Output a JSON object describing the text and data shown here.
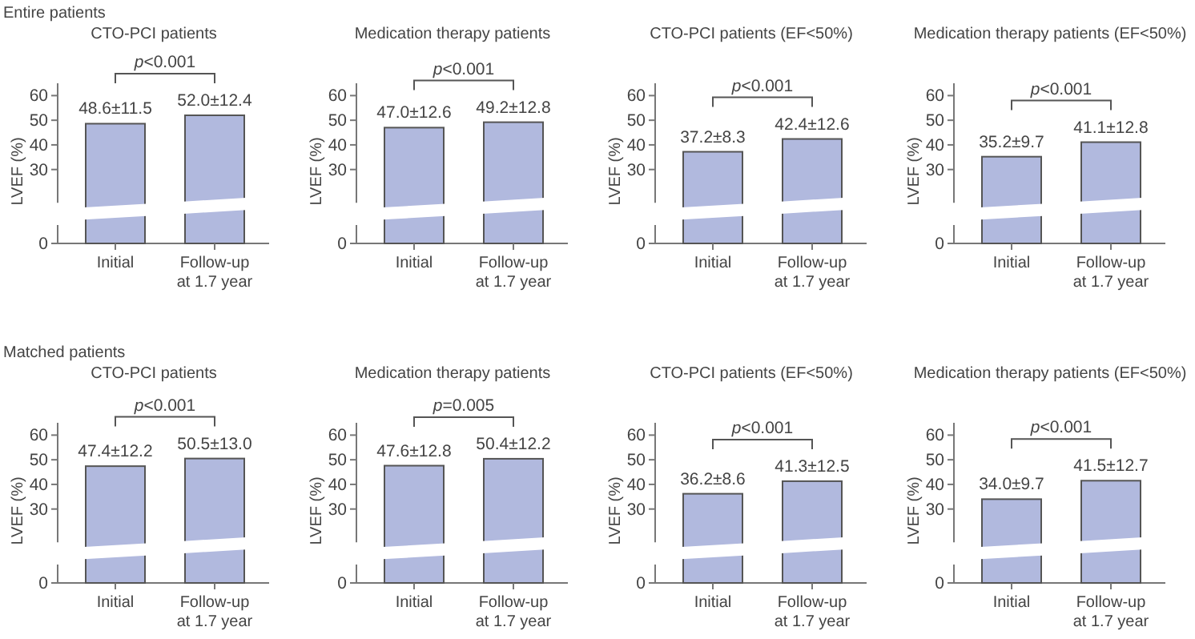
{
  "chart_data": [
    {
      "type": "bar",
      "subtitle": "Entire patients",
      "title": "CTO-PCI patients",
      "ylabel": "LVEF (%)",
      "categories": [
        "Initial",
        "Follow-up\nat 1.7 year"
      ],
      "values": [
        48.6,
        52.0
      ],
      "value_labels": [
        "48.6±11.5",
        "52.0±12.4"
      ],
      "color": "#b1b9de",
      "ylim": [
        0,
        65
      ],
      "yticks": [
        0,
        30,
        40,
        50,
        60
      ],
      "annotations": [
        "p<0.001"
      ]
    },
    {
      "type": "bar",
      "title": "Medication therapy patients",
      "ylabel": "LVEF (%)",
      "categories": [
        "Initial",
        "Follow-up\nat 1.7 year"
      ],
      "values": [
        47.0,
        49.2
      ],
      "value_labels": [
        "47.0±12.6",
        "49.2±12.8"
      ],
      "color": "#b1b9de",
      "ylim": [
        0,
        65
      ],
      "yticks": [
        0,
        30,
        40,
        50,
        60
      ],
      "annotations": [
        "p<0.001"
      ]
    },
    {
      "type": "bar",
      "title": "CTO-PCI patients (EF<50%)",
      "ylabel": "LVEF (%)",
      "categories": [
        "Initial",
        "Follow-up\nat 1.7 year"
      ],
      "values": [
        37.2,
        42.4
      ],
      "value_labels": [
        "37.2±8.3",
        "42.4±12.6"
      ],
      "color": "#b1b9de",
      "ylim": [
        0,
        65
      ],
      "yticks": [
        0,
        30,
        40,
        50,
        60
      ],
      "annotations": [
        "p<0.001"
      ]
    },
    {
      "type": "bar",
      "title": "Medication therapy patients (EF<50%)",
      "ylabel": "LVEF (%)",
      "categories": [
        "Initial",
        "Follow-up\nat 1.7 year"
      ],
      "values": [
        35.2,
        41.1
      ],
      "value_labels": [
        "35.2±9.7",
        "41.1±12.8"
      ],
      "color": "#b1b9de",
      "ylim": [
        0,
        65
      ],
      "yticks": [
        0,
        30,
        40,
        50,
        60
      ],
      "annotations": [
        "p<0.001"
      ]
    },
    {
      "type": "bar",
      "subtitle": "Matched patients",
      "title": "CTO-PCI patients",
      "ylabel": "LVEF (%)",
      "categories": [
        "Initial",
        "Follow-up\nat 1.7 year"
      ],
      "values": [
        47.4,
        50.5
      ],
      "value_labels": [
        "47.4±12.2",
        "50.5±13.0"
      ],
      "color": "#b1b9de",
      "ylim": [
        0,
        65
      ],
      "yticks": [
        0,
        30,
        40,
        50,
        60
      ],
      "annotations": [
        "p<0.001"
      ]
    },
    {
      "type": "bar",
      "title": "Medication therapy patients",
      "ylabel": "LVEF (%)",
      "categories": [
        "Initial",
        "Follow-up\nat 1.7 year"
      ],
      "values": [
        47.6,
        50.4
      ],
      "value_labels": [
        "47.6±12.8",
        "50.4±12.2"
      ],
      "color": "#b1b9de",
      "ylim": [
        0,
        65
      ],
      "yticks": [
        0,
        30,
        40,
        50,
        60
      ],
      "annotations": [
        "p=0.005"
      ]
    },
    {
      "type": "bar",
      "title": "CTO-PCI patients (EF<50%)",
      "ylabel": "LVEF (%)",
      "categories": [
        "Initial",
        "Follow-up\nat 1.7 year"
      ],
      "values": [
        36.2,
        41.3
      ],
      "value_labels": [
        "36.2±8.6",
        "41.3±12.5"
      ],
      "color": "#b1b9de",
      "ylim": [
        0,
        65
      ],
      "yticks": [
        0,
        30,
        40,
        50,
        60
      ],
      "annotations": [
        "p<0.001"
      ]
    },
    {
      "type": "bar",
      "title": "Medication therapy patients (EF<50%)",
      "ylabel": "LVEF (%)",
      "categories": [
        "Initial",
        "Follow-up\nat 1.7 year"
      ],
      "values": [
        34.0,
        41.5
      ],
      "value_labels": [
        "34.0±9.7",
        "41.5±12.7"
      ],
      "color": "#b1b9de",
      "ylim": [
        0,
        65
      ],
      "yticks": [
        0,
        30,
        40,
        50,
        60
      ],
      "annotations": [
        "p<0.001"
      ]
    }
  ]
}
